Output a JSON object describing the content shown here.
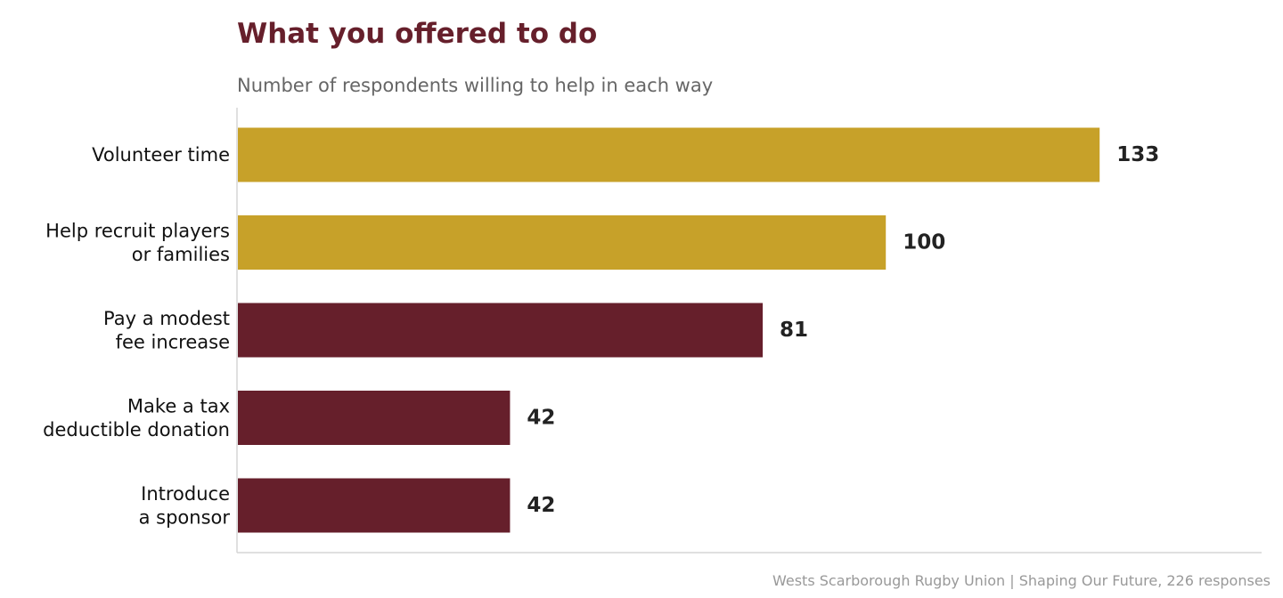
{
  "chart_data": {
    "type": "bar",
    "orientation": "horizontal",
    "title": "What you offered to do",
    "subtitle": "Number of respondents willing to help in each way",
    "categories": [
      [
        "Volunteer time"
      ],
      [
        "Help recruit players",
        "or families"
      ],
      [
        "Pay a modest",
        "fee increase"
      ],
      [
        "Make a tax",
        "deductible donation"
      ],
      [
        "Introduce",
        "a sponsor"
      ]
    ],
    "values": [
      133,
      100,
      81,
      42,
      42
    ],
    "value_labels": [
      "133",
      "100",
      "81",
      "42",
      "42"
    ],
    "bar_colors": [
      "#c7a129",
      "#c7a129",
      "#661f2b",
      "#661f2b",
      "#661f2b"
    ],
    "xlim": [
      0,
      158
    ],
    "grid": false,
    "footer": "Wests Scarborough Rugby Union  |  Shaping Our Future, 226 responses"
  },
  "colors": {
    "title": "#661f2b",
    "highlight": "#c7a129",
    "base": "#661f2b",
    "subtitle": "#666666",
    "footer": "#999999",
    "axis": "#d6d6d6"
  }
}
